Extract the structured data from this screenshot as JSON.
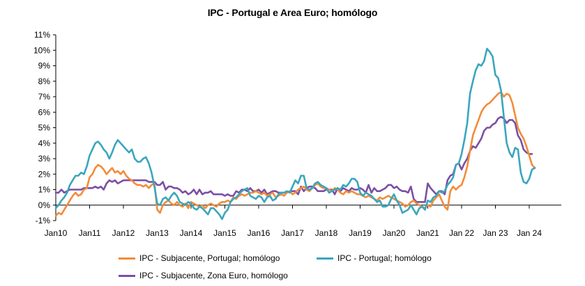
{
  "chart_data": {
    "type": "line",
    "title": "IPC - Portugal e Area Euro; homólogo",
    "ylim": [
      -1,
      11
    ],
    "y_ticks": [
      "-1%",
      "0%",
      "1%",
      "2%",
      "3%",
      "4%",
      "5%",
      "6%",
      "7%",
      "8%",
      "9%",
      "10%",
      "11%"
    ],
    "x_ticks": [
      "Jan10",
      "Jan11",
      "Jan12",
      "Jan13",
      "Jan14",
      "Jan15",
      "Jan16",
      "Jan17",
      "Jan18",
      "Jan19",
      "Jan20",
      "Jan21",
      "Jan 22",
      "Jan 23",
      "Jan 24"
    ],
    "x_start": "2010-01",
    "grid": false,
    "legend_position": "bottom",
    "series": [
      {
        "name": "IPC - Subjacente, Portugal; homólogo",
        "color": "#F28C3A",
        "values": [
          -0.7,
          -0.5,
          -0.6,
          -0.3,
          0.0,
          0.3,
          0.6,
          0.8,
          0.6,
          0.7,
          1.0,
          1.1,
          1.8,
          2.0,
          2.4,
          2.6,
          2.5,
          2.3,
          2.0,
          2.2,
          2.4,
          2.1,
          2.2,
          2.0,
          2.2,
          1.9,
          1.7,
          1.6,
          1.4,
          1.3,
          1.3,
          1.2,
          1.3,
          1.1,
          1.3,
          1.4,
          -0.3,
          -0.5,
          0.0,
          0.2,
          0.3,
          0.1,
          0.0,
          0.2,
          0.0,
          -0.1,
          0.1,
          -0.2,
          0.2,
          0.1,
          0.0,
          -0.1,
          0.0,
          -0.2,
          0.0,
          0.1,
          0.0,
          -0.1,
          0.1,
          0.2,
          0.2,
          0.3,
          0.2,
          0.5,
          0.4,
          0.6,
          0.7,
          0.6,
          0.7,
          0.8,
          0.8,
          0.9,
          0.8,
          0.7,
          0.8,
          0.6,
          0.7,
          0.8,
          0.5,
          0.6,
          0.7,
          0.6,
          0.8,
          0.9,
          0.7,
          0.8,
          1.0,
          1.1,
          1.2,
          1.0,
          0.9,
          1.1,
          1.3,
          1.4,
          1.2,
          1.1,
          1.1,
          1.0,
          0.9,
          1.1,
          1.0,
          0.8,
          0.7,
          0.9,
          0.8,
          0.9,
          0.8,
          0.7,
          0.7,
          0.6,
          0.5,
          0.6,
          0.5,
          0.4,
          0.3,
          0.5,
          0.4,
          0.5,
          0.6,
          0.5,
          0.4,
          0.3,
          0.2,
          0.1,
          -0.1,
          0.0,
          0.2,
          0.3,
          0.1,
          0.0,
          -0.1,
          -0.2,
          0.0,
          -0.1,
          0.3,
          0.5,
          0.7,
          0.3,
          -0.1,
          -0.3,
          0.9,
          1.2,
          1.0,
          1.2,
          1.3,
          1.8,
          2.5,
          3.5,
          4.5,
          5.0,
          5.5,
          6.0,
          6.3,
          6.5,
          6.6,
          6.8,
          7.0,
          7.2,
          7.3,
          7.0,
          7.2,
          7.1,
          6.6,
          5.8,
          5.0,
          4.6,
          4.3,
          3.8,
          3.2,
          2.6,
          2.4
        ]
      },
      {
        "name": "IPC - Portugal; homólogo",
        "color": "#3AA6BD",
        "values": [
          -0.2,
          0.0,
          0.3,
          0.5,
          0.8,
          1.3,
          1.6,
          1.9,
          1.9,
          2.1,
          2.0,
          2.5,
          3.2,
          3.6,
          4.0,
          4.1,
          3.9,
          3.6,
          3.4,
          3.0,
          3.4,
          3.9,
          4.2,
          4.0,
          3.8,
          3.6,
          3.4,
          3.6,
          3.0,
          2.8,
          2.8,
          3.0,
          3.1,
          2.7,
          2.1,
          1.2,
          0.1,
          0.0,
          0.4,
          0.5,
          0.3,
          0.6,
          0.8,
          0.6,
          0.2,
          0.1,
          0.0,
          0.2,
          0.1,
          -0.2,
          -0.3,
          -0.1,
          -0.2,
          -0.4,
          -0.6,
          -0.2,
          -0.2,
          -0.4,
          -0.6,
          -0.9,
          -0.5,
          -0.3,
          0.2,
          0.4,
          0.5,
          0.7,
          0.9,
          1.0,
          1.1,
          0.6,
          0.5,
          0.4,
          0.6,
          0.5,
          0.2,
          0.5,
          0.6,
          0.3,
          0.4,
          0.7,
          0.8,
          0.8,
          0.9,
          0.8,
          1.2,
          1.6,
          1.4,
          1.9,
          1.9,
          1.1,
          1.0,
          1.1,
          1.4,
          1.5,
          1.3,
          1.2,
          1.1,
          0.8,
          0.9,
          1.0,
          1.1,
          1.0,
          1.3,
          1.2,
          1.4,
          1.7,
          1.7,
          1.5,
          0.8,
          0.6,
          0.8,
          0.7,
          0.6,
          0.4,
          0.2,
          0.3,
          -0.1,
          -0.1,
          0.0,
          0.4,
          0.7,
          0.3,
          0.0,
          -0.5,
          -0.4,
          -0.3,
          0.0,
          -0.3,
          -0.6,
          -0.2,
          -0.1,
          -0.3,
          0.3,
          0.2,
          0.5,
          0.6,
          0.9,
          0.8,
          0.9,
          1.3,
          1.5,
          1.8,
          2.6,
          2.7,
          3.3,
          4.2,
          5.3,
          7.2,
          8.0,
          8.7,
          9.1,
          9.0,
          9.3,
          10.1,
          9.9,
          9.6,
          8.4,
          8.2,
          7.4,
          5.7,
          4.0,
          3.4,
          3.1,
          3.7,
          3.6,
          2.1,
          1.5,
          1.4,
          1.7,
          2.3,
          2.4
        ]
      },
      {
        "name": "IPC - Subjacente, Zona Euro, homólogo",
        "color": "#7B4FA5",
        "values": [
          0.8,
          0.8,
          1.0,
          0.8,
          0.9,
          1.0,
          1.0,
          1.0,
          1.0,
          1.0,
          1.1,
          1.1,
          1.1,
          1.1,
          1.2,
          1.1,
          1.2,
          1.0,
          1.4,
          1.6,
          1.5,
          1.6,
          1.4,
          1.5,
          1.6,
          1.6,
          1.6,
          1.6,
          1.6,
          1.6,
          1.6,
          1.6,
          1.6,
          1.5,
          1.5,
          1.5,
          1.3,
          1.3,
          1.5,
          1.0,
          1.2,
          1.2,
          1.1,
          1.1,
          1.0,
          0.8,
          0.9,
          0.7,
          0.8,
          1.0,
          0.7,
          1.0,
          0.7,
          0.8,
          0.8,
          0.9,
          0.7,
          0.7,
          0.7,
          0.7,
          0.6,
          0.7,
          0.6,
          0.6,
          0.9,
          0.8,
          1.0,
          1.0,
          0.9,
          1.1,
          0.9,
          0.9,
          1.0,
          0.8,
          1.0,
          0.7,
          0.8,
          0.9,
          0.9,
          0.8,
          0.8,
          0.8,
          0.8,
          0.9,
          0.9,
          0.9,
          0.7,
          1.2,
          0.9,
          1.1,
          1.2,
          1.2,
          1.1,
          0.9,
          0.9,
          0.9,
          1.0,
          1.0,
          1.0,
          0.7,
          1.1,
          0.9,
          1.1,
          1.0,
          0.9,
          1.1,
          1.0,
          1.0,
          1.1,
          1.0,
          0.8,
          1.3,
          0.8,
          1.1,
          0.9,
          0.9,
          1.0,
          1.1,
          1.3,
          1.3,
          1.1,
          1.2,
          1.0,
          0.9,
          0.9,
          0.8,
          1.2,
          0.4,
          0.2,
          0.2,
          0.2,
          0.2,
          1.4,
          1.1,
          0.9,
          0.7,
          0.9,
          0.9,
          0.7,
          1.6,
          1.9,
          2.0,
          2.6,
          2.7,
          2.3,
          2.7,
          3.0,
          3.5,
          3.8,
          3.7,
          4.0,
          4.3,
          4.8,
          5.0,
          5.0,
          5.2,
          5.3,
          5.6,
          5.7,
          5.6,
          5.3,
          5.5,
          5.5,
          5.3,
          4.5,
          4.2,
          3.6,
          3.4,
          3.3,
          3.3
        ]
      }
    ]
  }
}
